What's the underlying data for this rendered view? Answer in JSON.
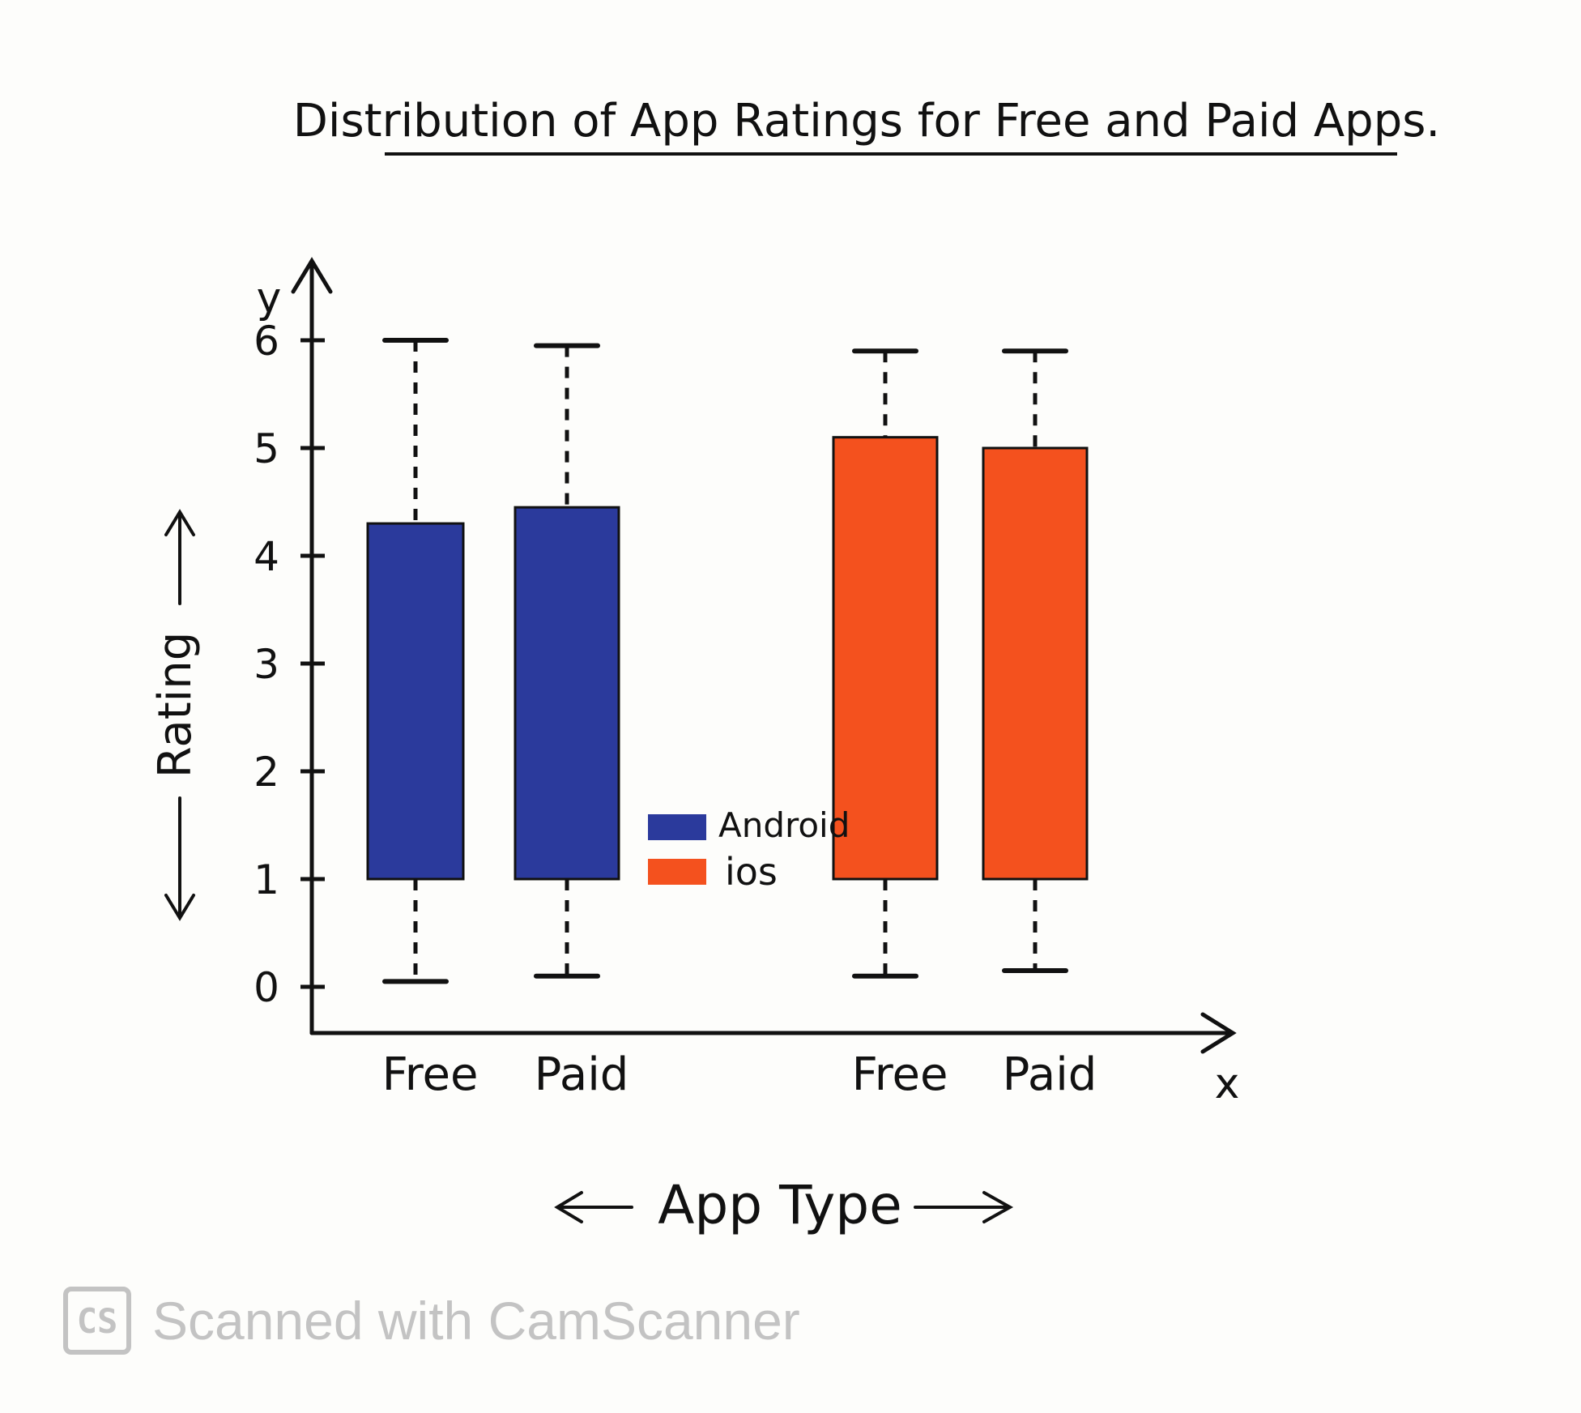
{
  "chart_data": {
    "type": "boxplot",
    "title": "Distribution of App Ratings for Free and Paid Apps.",
    "xlabel": "App Type",
    "ylabel": "Rating",
    "x_axis_letter": "x",
    "y_axis_letter": "y",
    "yticks": [
      0,
      1,
      2,
      3,
      4,
      5,
      6
    ],
    "ylim": [
      0,
      6.6
    ],
    "categories": [
      "Free",
      "Paid",
      "Free",
      "Paid"
    ],
    "boxes": [
      {
        "category": "Free",
        "series": "Android",
        "min": 0.05,
        "q1": 1.0,
        "q3": 4.3,
        "max": 6.0
      },
      {
        "category": "Paid",
        "series": "Android",
        "min": 0.1,
        "q1": 1.0,
        "q3": 4.45,
        "max": 5.95
      },
      {
        "category": "Free",
        "series": "iOS",
        "min": 0.1,
        "q1": 1.0,
        "q3": 5.1,
        "max": 5.9
      },
      {
        "category": "Paid",
        "series": "iOS",
        "min": 0.15,
        "q1": 1.0,
        "q3": 5.0,
        "max": 5.9
      }
    ],
    "legend": [
      {
        "name": "Android",
        "color": "#2b3a9c"
      },
      {
        "name": "ios",
        "color": "#f4511e"
      }
    ],
    "legend_position": "center",
    "grid": false
  },
  "watermark": {
    "logo": "CS",
    "text": "Scanned with CamScanner"
  }
}
